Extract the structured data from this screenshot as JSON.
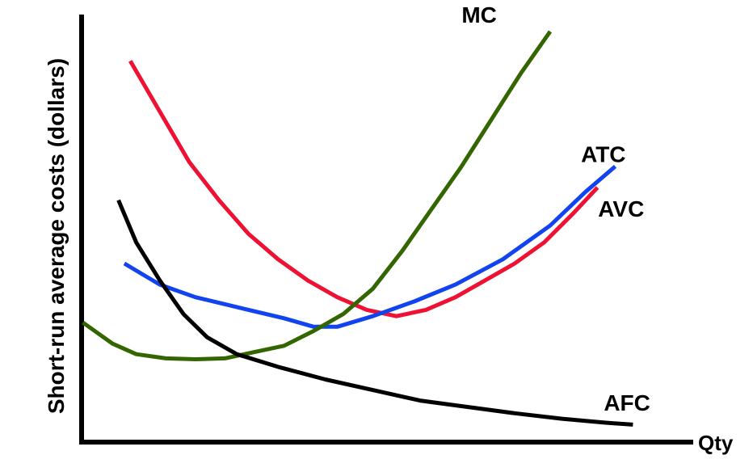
{
  "chart_data": {
    "type": "line",
    "title": "",
    "xlabel": "Qty",
    "ylabel": "Short-run average costs (dollars)",
    "xlim": [
      0,
      100
    ],
    "ylim": [
      0,
      100
    ],
    "grid": false,
    "legend": "none",
    "series": [
      {
        "name": "ATC",
        "color": "#ee1133",
        "label_at": [
          87,
          67
        ],
        "points": [
          [
            7,
            89
          ],
          [
            12,
            77
          ],
          [
            17,
            65
          ],
          [
            22,
            56
          ],
          [
            27,
            48
          ],
          [
            32,
            42
          ],
          [
            37,
            37
          ],
          [
            42,
            33
          ],
          [
            47,
            30
          ],
          [
            52,
            28.5
          ],
          [
            57,
            30
          ],
          [
            62,
            33
          ],
          [
            67,
            37
          ],
          [
            72,
            41
          ],
          [
            77,
            46
          ],
          [
            82,
            53
          ],
          [
            86,
            59
          ]
        ]
      },
      {
        "name": "AVC",
        "color": "#1144ee",
        "label_at": [
          90,
          54
        ],
        "points": [
          [
            6,
            41
          ],
          [
            12,
            36
          ],
          [
            18,
            33
          ],
          [
            27,
            30
          ],
          [
            33,
            28
          ],
          [
            38,
            26
          ],
          [
            42,
            26
          ],
          [
            48,
            28.5
          ],
          [
            55,
            32
          ],
          [
            62,
            36
          ],
          [
            70,
            42
          ],
          [
            78,
            50
          ],
          [
            84,
            58
          ],
          [
            89,
            64
          ]
        ]
      },
      {
        "name": "MC",
        "color": "#336600",
        "label_at": [
          66,
          100
        ],
        "points": [
          [
            -1,
            27
          ],
          [
            4,
            22
          ],
          [
            8,
            19.5
          ],
          [
            13,
            18.5
          ],
          [
            18,
            18.3
          ],
          [
            23,
            18.5
          ],
          [
            28,
            20
          ],
          [
            33,
            21.5
          ],
          [
            38,
            25
          ],
          [
            43,
            29
          ],
          [
            48,
            35
          ],
          [
            53,
            44
          ],
          [
            58,
            54
          ],
          [
            63,
            64
          ],
          [
            68,
            75
          ],
          [
            73,
            86
          ],
          [
            78,
            96
          ]
        ]
      },
      {
        "name": "AFC",
        "color": "#000000",
        "label_at": [
          91,
          8
        ],
        "points": [
          [
            5,
            56
          ],
          [
            8,
            46
          ],
          [
            12,
            37
          ],
          [
            16,
            29
          ],
          [
            20,
            23.5
          ],
          [
            25,
            19.5
          ],
          [
            32,
            16.5
          ],
          [
            40,
            13.5
          ],
          [
            48,
            11
          ],
          [
            56,
            8.5
          ],
          [
            64,
            7
          ],
          [
            72,
            5.5
          ],
          [
            80,
            4.2
          ],
          [
            87,
            3.3
          ],
          [
            92,
            2.8
          ]
        ]
      }
    ]
  }
}
